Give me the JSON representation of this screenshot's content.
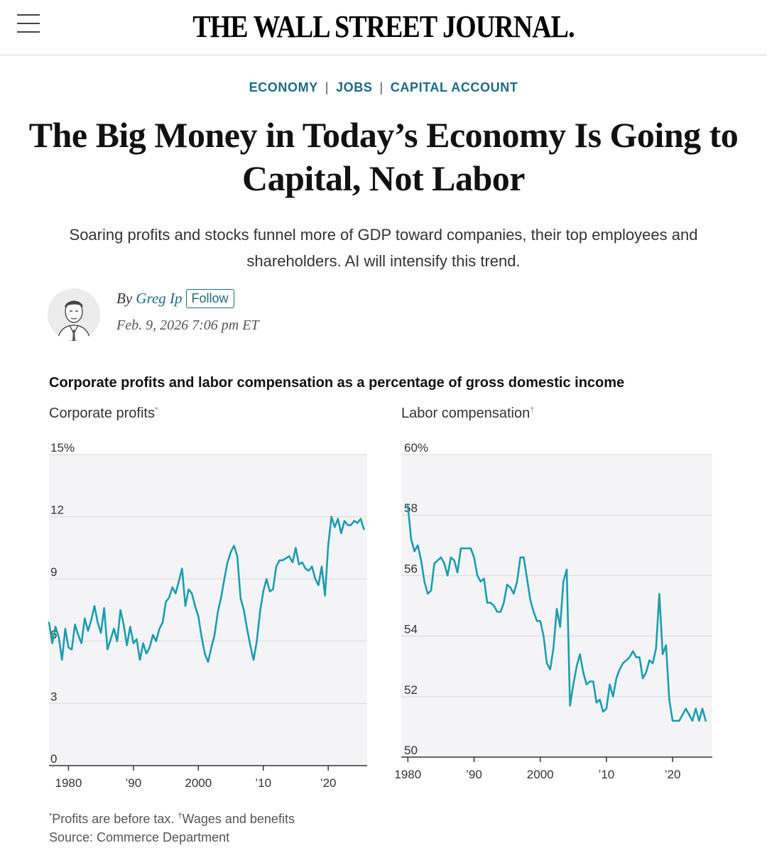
{
  "header": {
    "masthead": "THE WALL STREET JOURNAL."
  },
  "breadcrumbs": [
    "ECONOMY",
    "JOBS",
    "CAPITAL ACCOUNT"
  ],
  "article": {
    "headline": "The Big Money in Today’s Economy Is Going to Capital, Not Labor",
    "dek": "Soaring profits and stocks funnel more of GDP toward companies, their top employees and shareholders. AI will intensify this trend.",
    "byline_prefix": "By",
    "author": "Greg Ip",
    "follow_label": "Follow",
    "date": "Feb. 9, 2026 7:06 pm ET"
  },
  "colors": {
    "accent": "#1d6b80",
    "line": "#1b9db0"
  },
  "chart_data": {
    "title": "Corporate profits and labor compensation as a percentage of gross domestic income",
    "charts": [
      {
        "type": "line",
        "title": "Corporate profits",
        "title_mark": "*",
        "ylim": [
          0,
          15
        ],
        "yticks": [
          0,
          3,
          6,
          9,
          12,
          15
        ],
        "ytick_labels": [
          "0",
          "3",
          "6",
          "9",
          "12",
          "15%"
        ],
        "xlim": [
          1977,
          2026
        ],
        "xticks": [
          1980,
          1990,
          2000,
          2010,
          2020
        ],
        "xtick_labels": [
          "1980",
          "’90",
          "2000",
          "’10",
          "’20"
        ],
        "x": [
          1977.0,
          1977.5,
          1978.0,
          1978.5,
          1979.0,
          1979.5,
          1980.0,
          1980.5,
          1981.0,
          1981.5,
          1982.0,
          1982.5,
          1983.0,
          1983.5,
          1984.0,
          1984.5,
          1985.0,
          1985.5,
          1986.0,
          1986.5,
          1987.0,
          1987.5,
          1988.0,
          1988.5,
          1989.0,
          1989.5,
          1990.0,
          1990.5,
          1991.0,
          1991.5,
          1992.0,
          1992.5,
          1993.0,
          1993.5,
          1994.0,
          1994.5,
          1995.0,
          1995.5,
          1996.0,
          1996.5,
          1997.0,
          1997.5,
          1998.0,
          1998.5,
          1999.0,
          1999.5,
          2000.0,
          2000.5,
          2001.0,
          2001.5,
          2002.0,
          2002.5,
          2003.0,
          2003.5,
          2004.0,
          2004.5,
          2005.0,
          2005.5,
          2006.0,
          2006.5,
          2007.0,
          2007.5,
          2008.0,
          2008.5,
          2009.0,
          2009.5,
          2010.0,
          2010.5,
          2011.0,
          2011.5,
          2012.0,
          2012.5,
          2013.0,
          2013.5,
          2014.0,
          2014.5,
          2015.0,
          2015.5,
          2016.0,
          2016.5,
          2017.0,
          2017.5,
          2018.0,
          2018.5,
          2019.0,
          2019.5,
          2020.0,
          2020.5,
          2021.0,
          2021.5,
          2022.0,
          2022.5,
          2023.0,
          2023.5,
          2024.0,
          2024.5,
          2025.0,
          2025.5
        ],
        "values": [
          6.9,
          5.9,
          6.7,
          6.2,
          5.1,
          6.6,
          5.7,
          5.6,
          6.8,
          6.3,
          5.9,
          7.1,
          6.5,
          7.0,
          7.7,
          6.9,
          6.4,
          7.6,
          5.6,
          6.1,
          6.6,
          6.0,
          7.5,
          6.8,
          5.8,
          6.7,
          5.9,
          6.1,
          5.1,
          5.9,
          5.4,
          5.7,
          6.3,
          6.0,
          6.6,
          6.9,
          7.9,
          8.1,
          8.6,
          8.3,
          8.9,
          9.5,
          7.7,
          8.5,
          8.3,
          7.7,
          7.2,
          6.2,
          5.4,
          5.0,
          5.7,
          6.3,
          7.4,
          8.1,
          9.0,
          9.8,
          10.3,
          10.6,
          10.1,
          8.1,
          7.5,
          6.6,
          5.8,
          5.1,
          6.0,
          7.4,
          8.4,
          9.0,
          8.4,
          8.5,
          9.6,
          9.9,
          9.9,
          10.0,
          10.1,
          9.8,
          10.5,
          9.7,
          9.8,
          9.5,
          9.4,
          9.6,
          9.0,
          8.7,
          9.6,
          8.2,
          10.6,
          12.0,
          11.5,
          11.9,
          11.2,
          11.8,
          11.6,
          11.6,
          11.8,
          11.7,
          11.9,
          11.4
        ]
      },
      {
        "type": "line",
        "title": "Labor compensation",
        "title_mark": "†",
        "ylim": [
          50,
          60
        ],
        "yticks": [
          50,
          52,
          54,
          56,
          58,
          60
        ],
        "ytick_labels": [
          "50",
          "52",
          "54",
          "56",
          "58",
          "60%"
        ],
        "xlim": [
          1979,
          2026
        ],
        "xticks": [
          1980,
          1990,
          2000,
          2010,
          2020
        ],
        "xtick_labels": [
          "1980",
          "’90",
          "2000",
          "’10",
          "’20"
        ],
        "x": [
          1980.0,
          1980.5,
          1981.0,
          1981.5,
          1982.0,
          1982.5,
          1983.0,
          1983.5,
          1984.0,
          1984.5,
          1985.0,
          1985.5,
          1986.0,
          1986.5,
          1987.0,
          1987.5,
          1988.0,
          1988.5,
          1989.0,
          1989.5,
          1990.0,
          1990.5,
          1991.0,
          1991.5,
          1992.0,
          1992.5,
          1993.0,
          1993.5,
          1994.0,
          1994.5,
          1995.0,
          1995.5,
          1996.0,
          1996.5,
          1997.0,
          1997.5,
          1998.0,
          1998.5,
          1999.0,
          1999.5,
          2000.0,
          2000.5,
          2001.0,
          2001.5,
          2002.0,
          2002.5,
          2003.0,
          2003.5,
          2004.0,
          2004.5,
          2005.0,
          2005.5,
          2006.0,
          2006.5,
          2007.0,
          2007.5,
          2008.0,
          2008.5,
          2009.0,
          2009.5,
          2010.0,
          2010.5,
          2011.0,
          2011.5,
          2012.0,
          2012.5,
          2013.0,
          2013.5,
          2014.0,
          2014.5,
          2015.0,
          2015.5,
          2016.0,
          2016.5,
          2017.0,
          2017.5,
          2018.0,
          2018.5,
          2019.0,
          2019.5,
          2020.0,
          2020.5,
          2021.0,
          2021.5,
          2022.0,
          2022.5,
          2023.0,
          2023.5,
          2024.0,
          2024.5,
          2025.0
        ],
        "values": [
          58.3,
          57.2,
          56.8,
          57.0,
          56.5,
          55.8,
          55.4,
          55.5,
          56.4,
          56.5,
          56.6,
          56.4,
          56.0,
          56.6,
          56.5,
          56.1,
          56.9,
          56.9,
          56.9,
          56.9,
          56.6,
          56.0,
          55.8,
          55.9,
          55.1,
          55.1,
          55.0,
          54.8,
          54.8,
          55.1,
          55.7,
          55.6,
          55.4,
          55.8,
          56.6,
          56.6,
          55.9,
          55.2,
          54.8,
          54.5,
          54.5,
          54.0,
          53.1,
          52.9,
          53.6,
          54.9,
          54.3,
          55.8,
          56.2,
          51.7,
          52.4,
          53.0,
          53.4,
          52.8,
          52.4,
          52.5,
          52.5,
          51.8,
          51.9,
          51.5,
          51.6,
          52.4,
          52.0,
          52.6,
          52.9,
          53.1,
          53.2,
          53.3,
          53.5,
          53.3,
          53.3,
          52.6,
          52.8,
          53.2,
          53.1,
          53.6,
          55.4,
          53.4,
          53.7,
          51.9,
          51.2,
          51.2,
          51.2,
          51.4,
          51.6,
          51.4,
          51.2,
          51.6,
          51.2,
          51.6,
          51.2
        ]
      }
    ],
    "footnote_profits": "Profits are before tax.",
    "footnote_labor": "Wages and benefits",
    "source": "Source: Commerce Department"
  }
}
